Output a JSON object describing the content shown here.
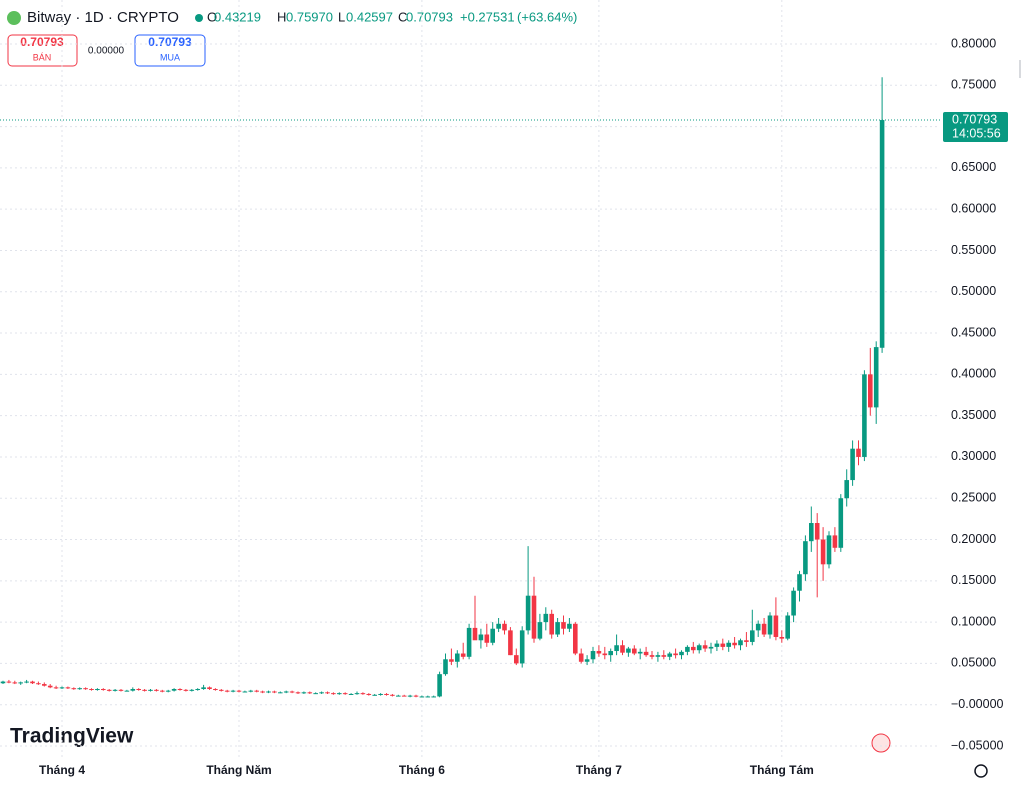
{
  "chart_data": {
    "type": "candlestick",
    "title": "Bitway · 1D · CRYPTO",
    "legend_ohlc": [
      {
        "name": "O",
        "value": 0.43219
      },
      {
        "name": "H",
        "value": {
          "value": 0.7597,
          "label": "0.75970"
        }
      },
      {
        "name": "L",
        "value": 0.42597
      },
      {
        "name": "C",
        "value": 0.70793
      }
    ],
    "change": {
      "value": 0.27531,
      "label": "+0.27531"
    },
    "change_percent": {
      "value": 63.64,
      "label": "(+63.64%)"
    },
    "sell": {
      "price": 0.70793,
      "label": "BÁN"
    },
    "spread": {
      "value": 0,
      "label": "0.00000"
    },
    "buy": {
      "price": 0.70793,
      "label": "MUA"
    },
    "last_price": {
      "value": 0.70793,
      "time": "14:05:56"
    },
    "logo": "TradingView",
    "up_color": "#089981",
    "down_color": "#f23645",
    "grid": true,
    "ylim": [
      -0.05,
      0.8
    ],
    "yticks": [
      {
        "value": -0.05,
        "label": "−0.05000"
      },
      {
        "value": 0,
        "label": "−0.00000"
      },
      {
        "value": 0.05,
        "label": "0.05000"
      },
      {
        "value": 0.1,
        "label": "0.10000"
      },
      {
        "value": 0.15,
        "label": "0.15000"
      },
      {
        "value": 0.2,
        "label": "0.20000"
      },
      {
        "value": 0.25,
        "label": "0.25000"
      },
      {
        "value": 0.3,
        "label": "0.30000"
      },
      {
        "value": 0.35,
        "label": "0.35000"
      },
      {
        "value": 0.4,
        "label": "0.40000"
      },
      {
        "value": 0.45,
        "label": "0.45000"
      },
      {
        "value": 0.5,
        "label": "0.50000"
      },
      {
        "value": 0.55,
        "label": "0.55000"
      },
      {
        "value": 0.6,
        "label": "0.60000"
      },
      {
        "value": 0.65,
        "label": "0.65000"
      },
      {
        "value": 0.7,
        "label": "0.70000"
      },
      {
        "value": 0.75,
        "label": "0.75000"
      },
      {
        "value": 0.8,
        "label": "0.80000"
      }
    ],
    "categories": [
      null,
      null,
      null,
      null,
      null,
      null,
      null,
      null,
      null,
      null,
      "Tháng 4",
      null,
      null,
      null,
      null,
      null,
      null,
      null,
      null,
      null,
      null,
      null,
      null,
      null,
      null,
      null,
      null,
      null,
      null,
      null,
      null,
      null,
      null,
      null,
      null,
      null,
      null,
      null,
      null,
      null,
      "Tháng Năm",
      null,
      null,
      null,
      null,
      null,
      null,
      null,
      null,
      null,
      null,
      null,
      null,
      null,
      null,
      null,
      null,
      null,
      null,
      null,
      null,
      null,
      null,
      null,
      null,
      null,
      null,
      null,
      null,
      null,
      null,
      "Tháng 6",
      null,
      null,
      null,
      null,
      null,
      null,
      null,
      null,
      null,
      null,
      null,
      null,
      null,
      null,
      null,
      null,
      null,
      null,
      null,
      null,
      null,
      null,
      null,
      null,
      null,
      null,
      null,
      null,
      null,
      "Tháng 7",
      null,
      null,
      null,
      null,
      null,
      null,
      null,
      null,
      null,
      null,
      null,
      null,
      null,
      null,
      null,
      null,
      null,
      null,
      null,
      null,
      null,
      null,
      null,
      null,
      null,
      null,
      null,
      null,
      null,
      null,
      "Tháng Tám",
      null,
      null,
      null,
      null,
      null,
      null,
      null,
      null,
      null,
      null,
      null,
      null,
      null,
      null,
      null,
      null,
      null
    ],
    "ohlc": [
      [
        0.026,
        0.029,
        0.025,
        0.028
      ],
      [
        0.028,
        0.03,
        0.026,
        0.027
      ],
      [
        0.027,
        0.029,
        0.025,
        0.026
      ],
      [
        0.026,
        0.028,
        0.024,
        0.027
      ],
      [
        0.027,
        0.03,
        0.026,
        0.028
      ],
      [
        0.028,
        0.029,
        0.025,
        0.026
      ],
      [
        0.026,
        0.028,
        0.024,
        0.025
      ],
      [
        0.025,
        0.027,
        0.022,
        0.023
      ],
      [
        0.023,
        0.025,
        0.02,
        0.021
      ],
      [
        0.021,
        0.023,
        0.019,
        0.02
      ],
      [
        0.02,
        0.022,
        0.019,
        0.021
      ],
      [
        0.021,
        0.022,
        0.019,
        0.02
      ],
      [
        0.02,
        0.021,
        0.018,
        0.019
      ],
      [
        0.019,
        0.021,
        0.018,
        0.02
      ],
      [
        0.02,
        0.021,
        0.018,
        0.019
      ],
      [
        0.019,
        0.02,
        0.017,
        0.018
      ],
      [
        0.018,
        0.02,
        0.017,
        0.019
      ],
      [
        0.019,
        0.02,
        0.017,
        0.018
      ],
      [
        0.018,
        0.019,
        0.016,
        0.017
      ],
      [
        0.017,
        0.019,
        0.016,
        0.018
      ],
      [
        0.018,
        0.019,
        0.016,
        0.017
      ],
      [
        0.017,
        0.018,
        0.016,
        0.017
      ],
      [
        0.017,
        0.021,
        0.016,
        0.019
      ],
      [
        0.019,
        0.02,
        0.017,
        0.018
      ],
      [
        0.018,
        0.019,
        0.016,
        0.017
      ],
      [
        0.017,
        0.019,
        0.016,
        0.018
      ],
      [
        0.018,
        0.019,
        0.016,
        0.017
      ],
      [
        0.017,
        0.018,
        0.015,
        0.016
      ],
      [
        0.016,
        0.018,
        0.015,
        0.017
      ],
      [
        0.017,
        0.02,
        0.016,
        0.019
      ],
      [
        0.019,
        0.02,
        0.017,
        0.018
      ],
      [
        0.018,
        0.019,
        0.016,
        0.017
      ],
      [
        0.017,
        0.019,
        0.016,
        0.018
      ],
      [
        0.018,
        0.02,
        0.017,
        0.019
      ],
      [
        0.019,
        0.024,
        0.018,
        0.021
      ],
      [
        0.021,
        0.022,
        0.018,
        0.019
      ],
      [
        0.019,
        0.02,
        0.017,
        0.018
      ],
      [
        0.018,
        0.019,
        0.016,
        0.017
      ],
      [
        0.017,
        0.018,
        0.015,
        0.016
      ],
      [
        0.016,
        0.018,
        0.015,
        0.017
      ],
      [
        0.017,
        0.018,
        0.015,
        0.016
      ],
      [
        0.016,
        0.017,
        0.015,
        0.016
      ],
      [
        0.016,
        0.018,
        0.015,
        0.017
      ],
      [
        0.017,
        0.018,
        0.015,
        0.016
      ],
      [
        0.016,
        0.017,
        0.014,
        0.015
      ],
      [
        0.015,
        0.017,
        0.014,
        0.016
      ],
      [
        0.016,
        0.017,
        0.014,
        0.015
      ],
      [
        0.015,
        0.016,
        0.014,
        0.015
      ],
      [
        0.015,
        0.017,
        0.014,
        0.016
      ],
      [
        0.016,
        0.017,
        0.014,
        0.015
      ],
      [
        0.015,
        0.016,
        0.013,
        0.014
      ],
      [
        0.014,
        0.016,
        0.013,
        0.015
      ],
      [
        0.015,
        0.016,
        0.013,
        0.014
      ],
      [
        0.014,
        0.015,
        0.013,
        0.014
      ],
      [
        0.014,
        0.016,
        0.013,
        0.015
      ],
      [
        0.015,
        0.016,
        0.013,
        0.014
      ],
      [
        0.014,
        0.015,
        0.012,
        0.013
      ],
      [
        0.013,
        0.015,
        0.012,
        0.014
      ],
      [
        0.014,
        0.015,
        0.012,
        0.013
      ],
      [
        0.013,
        0.014,
        0.012,
        0.013
      ],
      [
        0.013,
        0.016,
        0.012,
        0.014
      ],
      [
        0.014,
        0.015,
        0.012,
        0.013
      ],
      [
        0.013,
        0.014,
        0.011,
        0.012
      ],
      [
        0.012,
        0.013,
        0.011,
        0.012
      ],
      [
        0.012,
        0.014,
        0.011,
        0.013
      ],
      [
        0.013,
        0.014,
        0.011,
        0.012
      ],
      [
        0.012,
        0.013,
        0.01,
        0.011
      ],
      [
        0.011,
        0.012,
        0.01,
        0.011
      ],
      [
        0.011,
        0.012,
        0.01,
        0.01
      ],
      [
        0.01,
        0.012,
        0.009,
        0.011
      ],
      [
        0.011,
        0.012,
        0.009,
        0.01
      ],
      [
        0.01,
        0.011,
        0.009,
        0.01
      ],
      [
        0.01,
        0.011,
        0.009,
        0.01
      ],
      [
        0.01,
        0.011,
        0.009,
        0.01
      ],
      [
        0.01,
        0.04,
        0.009,
        0.037
      ],
      [
        0.037,
        0.062,
        0.035,
        0.055
      ],
      [
        0.055,
        0.068,
        0.048,
        0.052
      ],
      [
        0.052,
        0.066,
        0.045,
        0.062
      ],
      [
        0.062,
        0.075,
        0.055,
        0.058
      ],
      [
        0.058,
        0.098,
        0.055,
        0.093
      ],
      [
        0.093,
        0.132,
        0.085,
        0.078
      ],
      [
        0.078,
        0.092,
        0.068,
        0.085
      ],
      [
        0.085,
        0.098,
        0.07,
        0.075
      ],
      [
        0.075,
        0.1,
        0.072,
        0.092
      ],
      [
        0.092,
        0.105,
        0.088,
        0.098
      ],
      [
        0.098,
        0.102,
        0.085,
        0.09
      ],
      [
        0.09,
        0.094,
        0.06,
        0.06
      ],
      [
        0.06,
        0.068,
        0.048,
        0.05
      ],
      [
        0.05,
        0.095,
        0.045,
        0.09
      ],
      [
        0.09,
        0.192,
        0.085,
        0.132
      ],
      [
        0.132,
        0.155,
        0.075,
        0.08
      ],
      [
        0.08,
        0.11,
        0.078,
        0.1
      ],
      [
        0.1,
        0.118,
        0.09,
        0.11
      ],
      [
        0.11,
        0.115,
        0.08,
        0.085
      ],
      [
        0.085,
        0.105,
        0.082,
        0.1
      ],
      [
        0.1,
        0.108,
        0.085,
        0.092
      ],
      [
        0.092,
        0.105,
        0.088,
        0.098
      ],
      [
        0.098,
        0.1,
        0.06,
        0.062
      ],
      [
        0.062,
        0.068,
        0.05,
        0.052
      ],
      [
        0.052,
        0.06,
        0.048,
        0.055
      ],
      [
        0.055,
        0.07,
        0.05,
        0.065
      ],
      [
        0.065,
        0.072,
        0.058,
        0.062
      ],
      [
        0.062,
        0.07,
        0.055,
        0.06
      ],
      [
        0.06,
        0.068,
        0.052,
        0.065
      ],
      [
        0.065,
        0.085,
        0.06,
        0.072
      ],
      [
        0.072,
        0.078,
        0.06,
        0.063
      ],
      [
        0.063,
        0.07,
        0.058,
        0.068
      ],
      [
        0.068,
        0.072,
        0.06,
        0.062
      ],
      [
        0.062,
        0.068,
        0.055,
        0.064
      ],
      [
        0.064,
        0.07,
        0.058,
        0.06
      ],
      [
        0.06,
        0.065,
        0.055,
        0.058
      ],
      [
        0.058,
        0.064,
        0.052,
        0.06
      ],
      [
        0.06,
        0.066,
        0.055,
        0.058
      ],
      [
        0.058,
        0.064,
        0.054,
        0.062
      ],
      [
        0.062,
        0.068,
        0.056,
        0.06
      ],
      [
        0.06,
        0.066,
        0.055,
        0.064
      ],
      [
        0.064,
        0.072,
        0.06,
        0.07
      ],
      [
        0.07,
        0.076,
        0.062,
        0.066
      ],
      [
        0.066,
        0.074,
        0.062,
        0.072
      ],
      [
        0.072,
        0.078,
        0.064,
        0.068
      ],
      [
        0.068,
        0.075,
        0.062,
        0.07
      ],
      [
        0.07,
        0.078,
        0.065,
        0.074
      ],
      [
        0.074,
        0.08,
        0.066,
        0.07
      ],
      [
        0.07,
        0.078,
        0.064,
        0.075
      ],
      [
        0.075,
        0.082,
        0.068,
        0.072
      ],
      [
        0.072,
        0.08,
        0.066,
        0.078
      ],
      [
        0.078,
        0.088,
        0.07,
        0.076
      ],
      [
        0.076,
        0.115,
        0.072,
        0.09
      ],
      [
        0.09,
        0.102,
        0.082,
        0.098
      ],
      [
        0.098,
        0.105,
        0.082,
        0.085
      ],
      [
        0.085,
        0.112,
        0.08,
        0.108
      ],
      [
        0.108,
        0.13,
        0.078,
        0.082
      ],
      [
        0.082,
        0.09,
        0.075,
        0.08
      ],
      [
        0.08,
        0.112,
        0.078,
        0.108
      ],
      [
        0.108,
        0.142,
        0.1,
        0.138
      ],
      [
        0.138,
        0.162,
        0.125,
        0.158
      ],
      [
        0.158,
        0.205,
        0.15,
        0.198
      ],
      [
        0.198,
        0.24,
        0.185,
        0.22
      ],
      [
        0.22,
        0.232,
        0.13,
        0.2
      ],
      [
        0.2,
        0.215,
        0.15,
        0.17
      ],
      [
        0.17,
        0.21,
        0.165,
        0.205
      ],
      [
        0.205,
        0.215,
        0.185,
        0.19
      ],
      [
        0.19,
        0.255,
        0.185,
        0.25
      ],
      [
        0.25,
        0.285,
        0.24,
        0.272
      ],
      [
        0.272,
        0.32,
        0.265,
        0.31
      ],
      [
        0.31,
        0.32,
        0.29,
        0.3
      ],
      [
        0.3,
        0.405,
        0.295,
        0.4
      ],
      [
        0.4,
        0.432,
        0.35,
        0.36
      ],
      [
        0.36,
        0.44,
        0.34,
        0.433
      ],
      [
        0.43219,
        0.7597,
        0.42597,
        0.70793
      ]
    ]
  }
}
